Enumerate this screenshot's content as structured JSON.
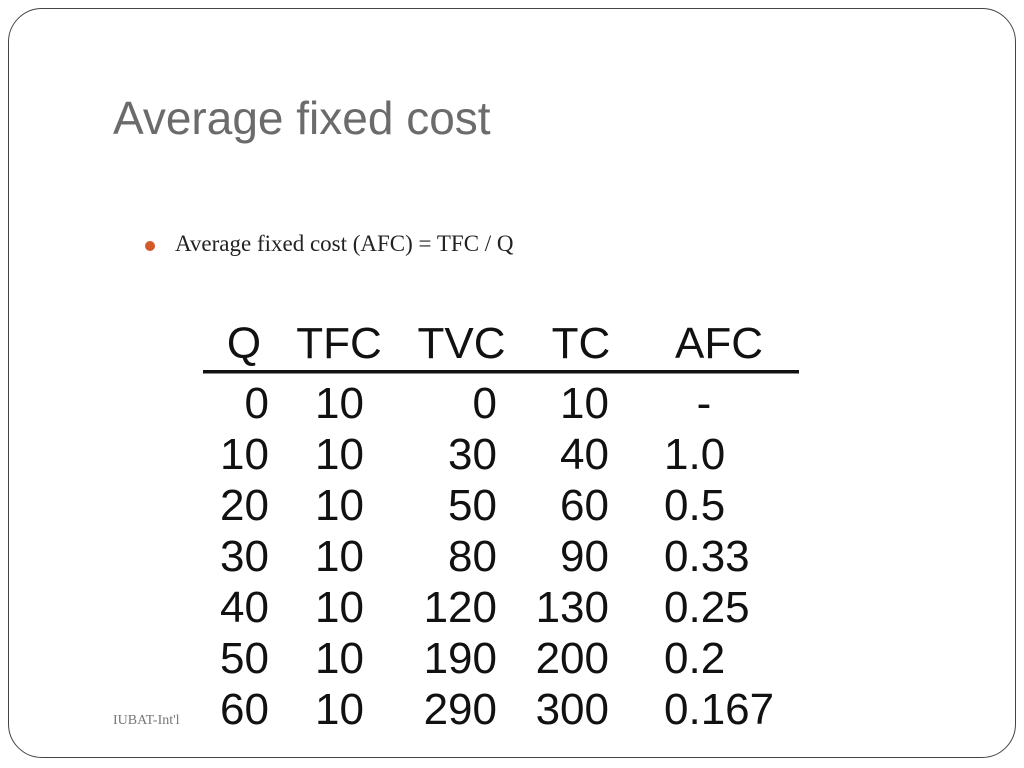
{
  "slide": {
    "title": "Average fixed cost",
    "bullet": "Average fixed cost (AFC) = TFC / Q",
    "footer": "IUBAT-Int'l"
  },
  "colors": {
    "title": "#6b6b6b",
    "bullet_dot": "#d4582a",
    "slide_border": "#444444"
  },
  "table": {
    "headers": [
      "Q",
      "TFC",
      "TVC",
      "TC",
      "AFC"
    ],
    "rows": [
      [
        "0",
        "10",
        "0",
        "10",
        "-"
      ],
      [
        "10",
        "10",
        "30",
        "40",
        "1.0"
      ],
      [
        "20",
        "10",
        "50",
        "60",
        "0.5"
      ],
      [
        "30",
        "10",
        "80",
        "90",
        "0.33"
      ],
      [
        "40",
        "10",
        "120",
        "130",
        "0.25"
      ],
      [
        "50",
        "10",
        "190",
        "200",
        "0.2"
      ],
      [
        "60",
        "10",
        "290",
        "300",
        "0.167"
      ]
    ]
  }
}
